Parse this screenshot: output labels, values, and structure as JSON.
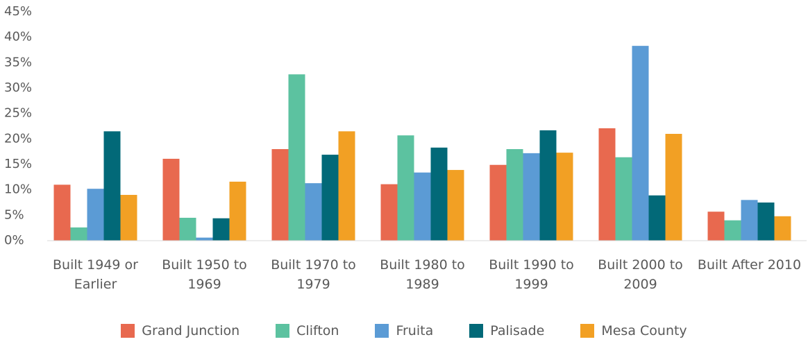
{
  "chart_data": {
    "type": "bar",
    "categories": [
      "Built 1949 or Earlier",
      "Built 1950 to 1969",
      "Built 1970 to 1979",
      "Built 1980 to 1989",
      "Built 1990 to 1999",
      "Built 2000 to 2009",
      "Built After 2010"
    ],
    "series": [
      {
        "name": "Grand Junction",
        "color": "#e8694f",
        "values": [
          11,
          16.1,
          18,
          11.1,
          14.9,
          22.1,
          5.7
        ]
      },
      {
        "name": "Clifton",
        "color": "#5cc2a0",
        "values": [
          2.6,
          4.5,
          32.7,
          20.7,
          18,
          16.4,
          4
        ]
      },
      {
        "name": "Fruita",
        "color": "#5b9bd5",
        "values": [
          10.2,
          0.6,
          11.3,
          13.4,
          17.2,
          38.3,
          8
        ]
      },
      {
        "name": "Palisade",
        "color": "#026978",
        "values": [
          21.5,
          4.4,
          16.9,
          18.3,
          21.7,
          8.9,
          7.5
        ]
      },
      {
        "name": "Mesa County",
        "color": "#f2a024",
        "values": [
          9,
          11.6,
          21.5,
          13.9,
          17.3,
          21,
          4.8
        ]
      }
    ],
    "ylim": [
      0,
      45
    ],
    "yticks": [
      {
        "value": 0,
        "label": "0%"
      },
      {
        "value": 5,
        "label": "5%"
      },
      {
        "value": 10,
        "label": "10%"
      },
      {
        "value": 15,
        "label": "15%"
      },
      {
        "value": 20,
        "label": "20%"
      },
      {
        "value": 25,
        "label": "25%"
      },
      {
        "value": 30,
        "label": "30%"
      },
      {
        "value": 35,
        "label": "35%"
      },
      {
        "value": 40,
        "label": "40%"
      },
      {
        "value": 45,
        "label": "45%"
      }
    ],
    "grid": false,
    "legend": "bottom"
  }
}
